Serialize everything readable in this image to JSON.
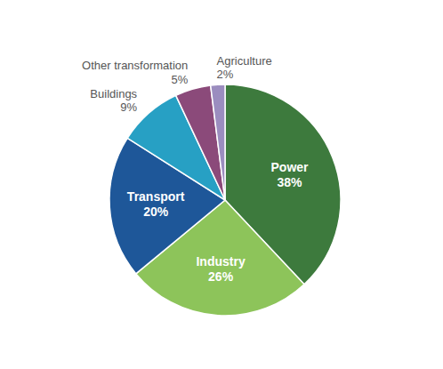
{
  "chart_data": {
    "type": "pie",
    "categories": [
      "Power",
      "Industry",
      "Transport",
      "Buildings",
      "Other transformation",
      "Agriculture"
    ],
    "values": [
      38,
      26,
      20,
      9,
      5,
      2
    ],
    "value_labels": [
      "38%",
      "26%",
      "20%",
      "9%",
      "5%",
      "2%"
    ],
    "colors": [
      "#3d7a3d",
      "#8dc45a",
      "#1e5799",
      "#27a0c4",
      "#8b4a7a",
      "#9b8dbf"
    ],
    "data_labels": true
  }
}
